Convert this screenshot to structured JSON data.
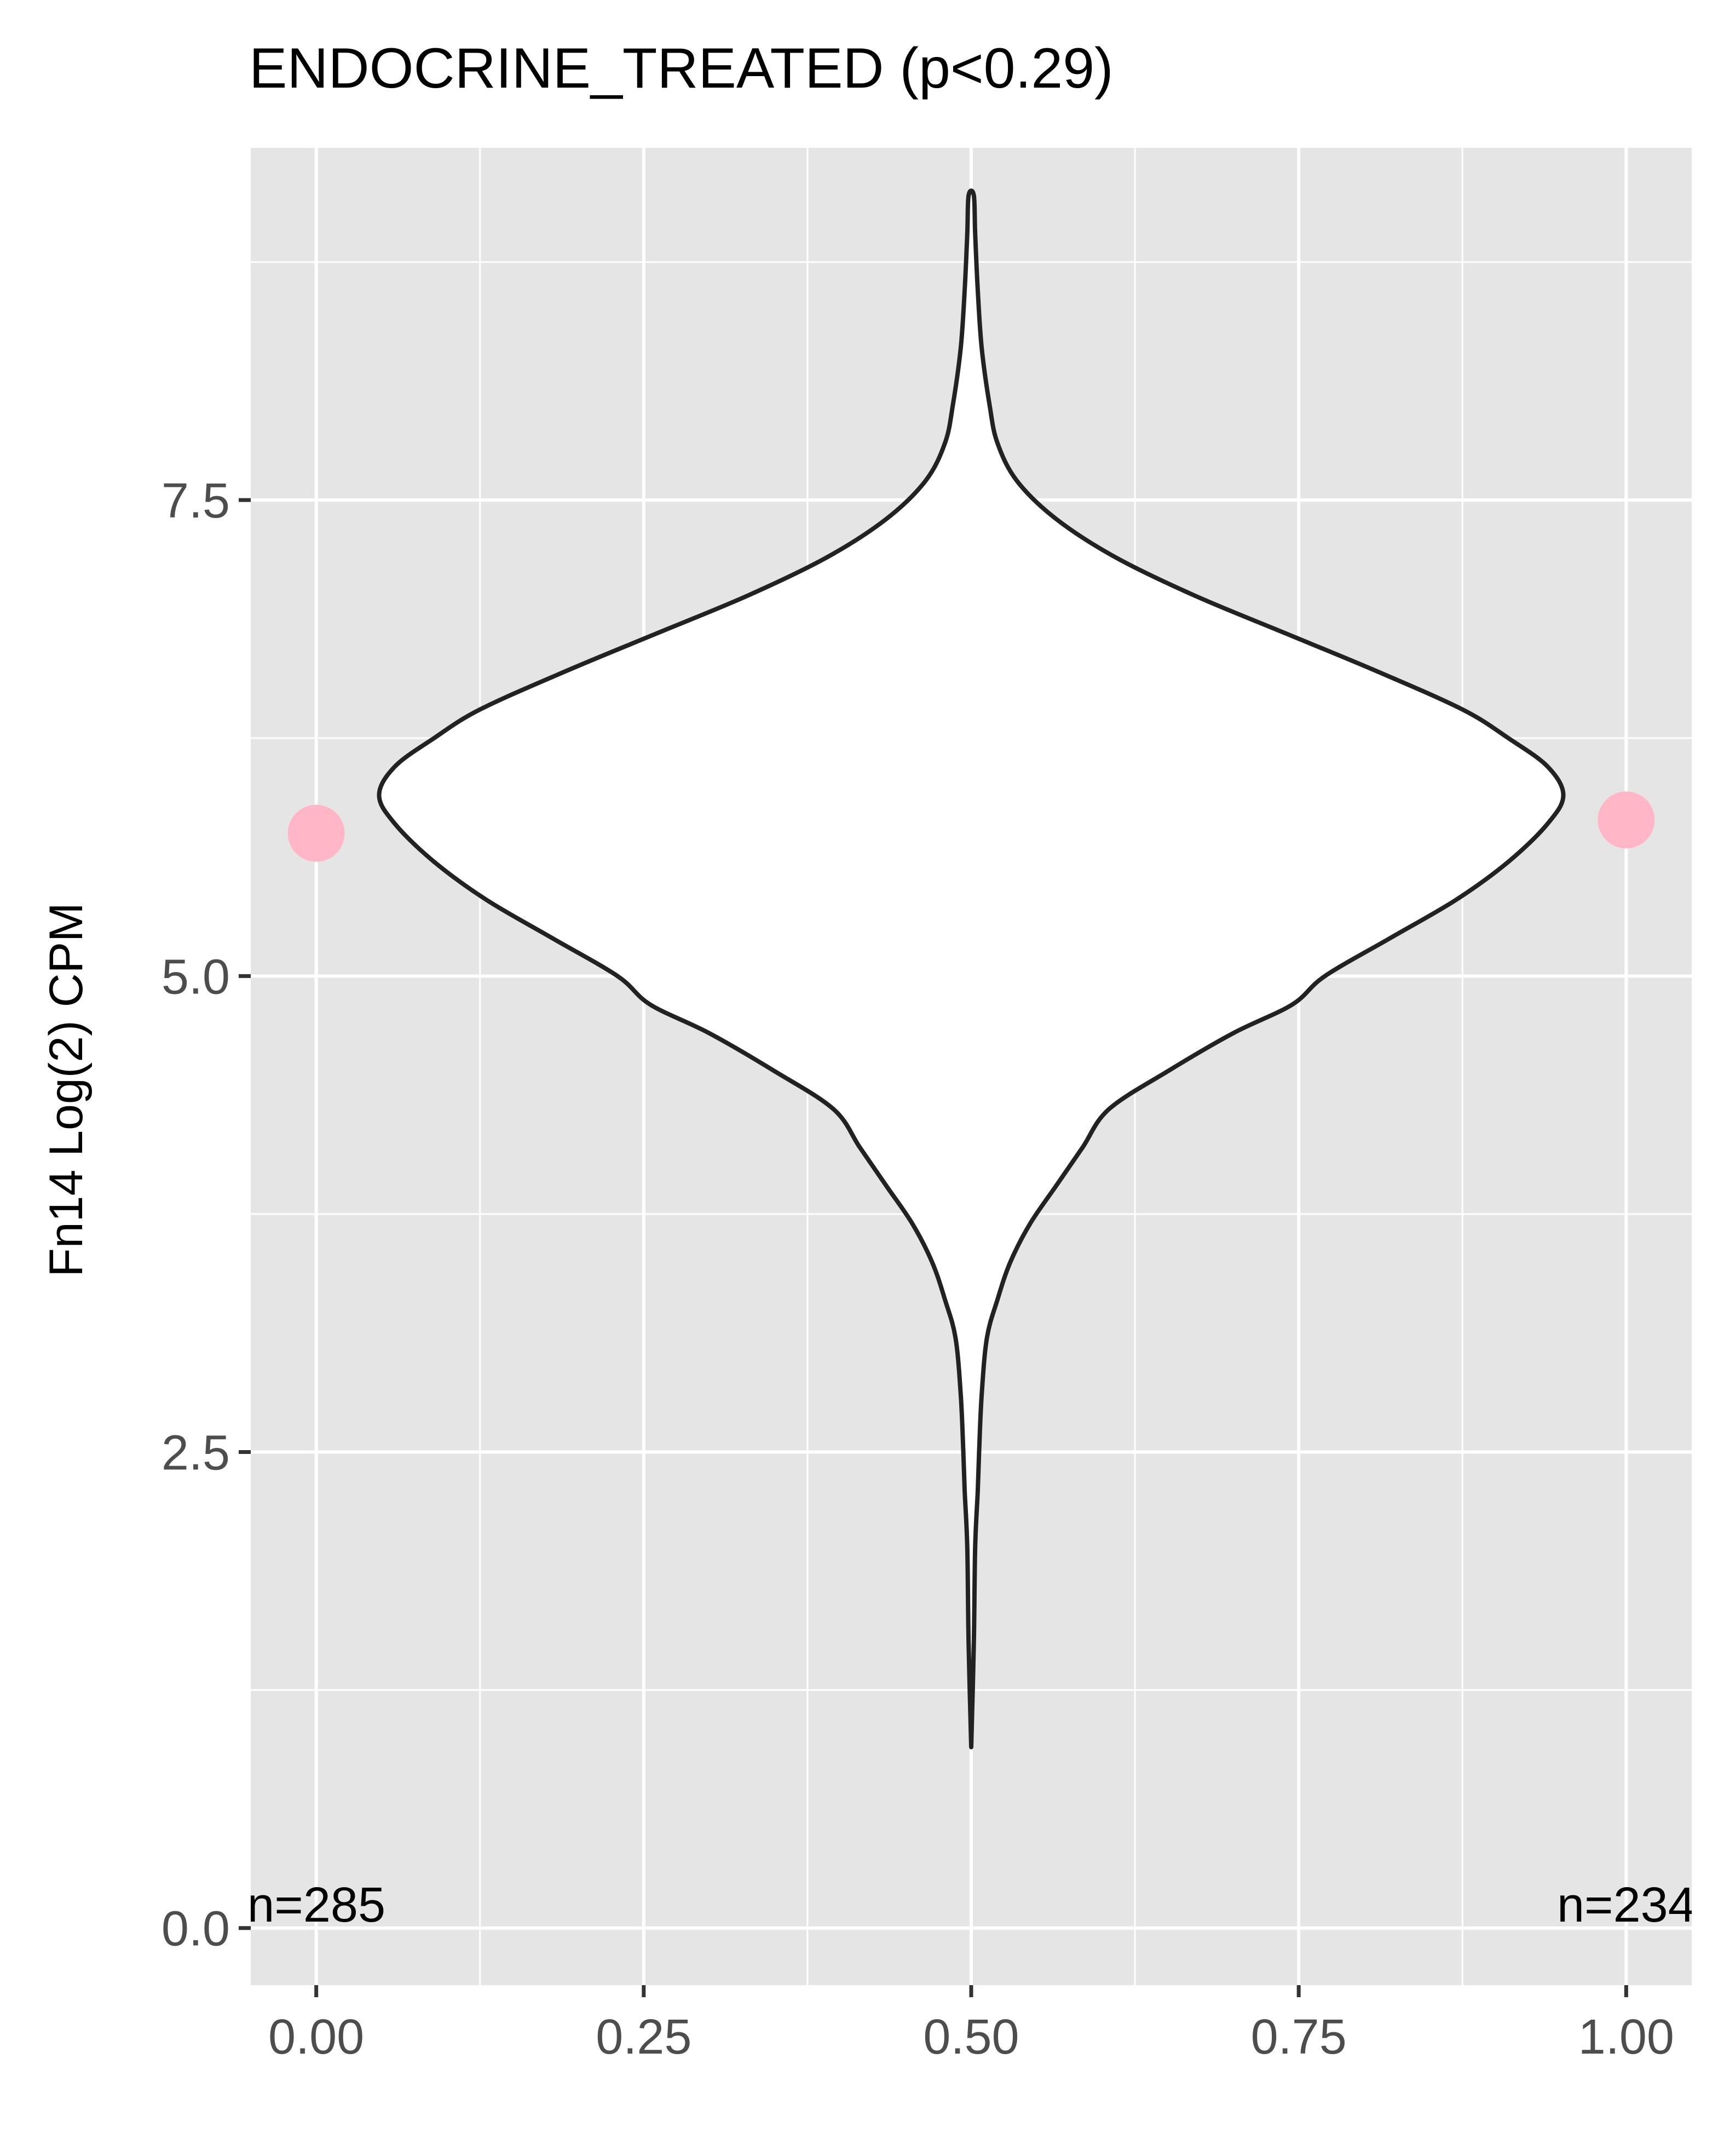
{
  "chart_data": {
    "type": "violin",
    "title": "ENDOCRINE_TREATED (p<0.29)",
    "xlabel": "",
    "ylabel": "Fn14 Log(2) CPM",
    "xlim": [
      -0.05,
      1.05
    ],
    "ylim": [
      -0.3,
      9.35
    ],
    "x_ticks": [
      {
        "value": 0.0,
        "label": "0.00"
      },
      {
        "value": 0.25,
        "label": "0.25"
      },
      {
        "value": 0.5,
        "label": "0.50"
      },
      {
        "value": 0.75,
        "label": "0.75"
      },
      {
        "value": 1.0,
        "label": "1.00"
      }
    ],
    "y_ticks": [
      {
        "value": 0.0,
        "label": "0.0"
      },
      {
        "value": 2.5,
        "label": "2.5"
      },
      {
        "value": 5.0,
        "label": "5.0"
      },
      {
        "value": 7.5,
        "label": "7.5"
      }
    ],
    "grid": true,
    "panel_color": "#e5e5e5",
    "violin": {
      "center_x": 0.5,
      "fill": "#ffffff",
      "stroke": "#222222",
      "profile": [
        {
          "y": 0.95,
          "hw": 0.0
        },
        {
          "y": 1.5,
          "hw": 0.002
        },
        {
          "y": 2.0,
          "hw": 0.003
        },
        {
          "y": 2.3,
          "hw": 0.005
        },
        {
          "y": 2.5,
          "hw": 0.006
        },
        {
          "y": 2.8,
          "hw": 0.008
        },
        {
          "y": 3.1,
          "hw": 0.012
        },
        {
          "y": 3.3,
          "hw": 0.02
        },
        {
          "y": 3.5,
          "hw": 0.03
        },
        {
          "y": 3.7,
          "hw": 0.045
        },
        {
          "y": 3.9,
          "hw": 0.065
        },
        {
          "y": 4.1,
          "hw": 0.085
        },
        {
          "y": 4.3,
          "hw": 0.105
        },
        {
          "y": 4.5,
          "hw": 0.15
        },
        {
          "y": 4.7,
          "hw": 0.2
        },
        {
          "y": 4.85,
          "hw": 0.245
        },
        {
          "y": 5.0,
          "hw": 0.27
        },
        {
          "y": 5.2,
          "hw": 0.32
        },
        {
          "y": 5.4,
          "hw": 0.37
        },
        {
          "y": 5.6,
          "hw": 0.41
        },
        {
          "y": 5.8,
          "hw": 0.44
        },
        {
          "y": 5.95,
          "hw": 0.452
        },
        {
          "y": 6.1,
          "hw": 0.44
        },
        {
          "y": 6.25,
          "hw": 0.41
        },
        {
          "y": 6.4,
          "hw": 0.375
        },
        {
          "y": 6.6,
          "hw": 0.31
        },
        {
          "y": 6.8,
          "hw": 0.24
        },
        {
          "y": 7.0,
          "hw": 0.17
        },
        {
          "y": 7.2,
          "hw": 0.11
        },
        {
          "y": 7.4,
          "hw": 0.065
        },
        {
          "y": 7.6,
          "hw": 0.035
        },
        {
          "y": 7.8,
          "hw": 0.02
        },
        {
          "y": 8.0,
          "hw": 0.014
        },
        {
          "y": 8.3,
          "hw": 0.008
        },
        {
          "y": 8.6,
          "hw": 0.005
        },
        {
          "y": 8.9,
          "hw": 0.003
        },
        {
          "y": 9.1,
          "hw": 0.002
        }
      ]
    },
    "points": [
      {
        "x": 0.0,
        "y": 5.75,
        "color": "#ffb6c6"
      },
      {
        "x": 1.0,
        "y": 5.82,
        "color": "#ffb6c6"
      }
    ],
    "annotations": [
      {
        "text": "n=285",
        "x": 0.0,
        "y": 0.12,
        "anchor": "middle"
      },
      {
        "text": "n=234",
        "x": 1.0,
        "y": 0.12,
        "anchor": "middle"
      }
    ]
  }
}
